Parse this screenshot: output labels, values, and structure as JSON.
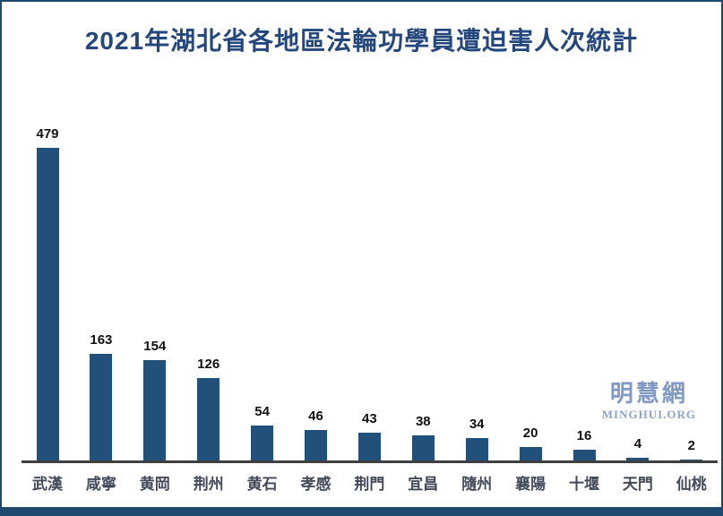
{
  "frame": {
    "border_color": "#1d4a6e",
    "background_color": "#ffffff"
  },
  "title": {
    "text": "2021年湖北省各地區法輪功學員遭迫害人次統計",
    "color": "#24477e"
  },
  "watermark": {
    "cjk": "明慧網",
    "latin": "MINGHUI.ORG",
    "color": "#7e9ac4"
  },
  "chart_data": {
    "type": "bar",
    "title": "2021年湖北省各地區法輪功學員遭迫害人次統計",
    "categories": [
      "武漢",
      "咸寧",
      "黄岡",
      "荆州",
      "黄石",
      "孝感",
      "荆門",
      "宜昌",
      "隨州",
      "襄陽",
      "十堰",
      "天門",
      "仙桃"
    ],
    "values": [
      479,
      163,
      154,
      126,
      54,
      46,
      43,
      38,
      34,
      20,
      16,
      4,
      2
    ],
    "xlabel": "",
    "ylabel": "",
    "ylim": [
      0,
      479
    ],
    "grid": false,
    "legend": false,
    "value_labels_shown": true,
    "y_axis_shown": false,
    "bar_color": "#21507a",
    "axis_line_color": "#3f3f3f",
    "value_label_color": "#111111",
    "category_label_color": "#434a5a"
  }
}
